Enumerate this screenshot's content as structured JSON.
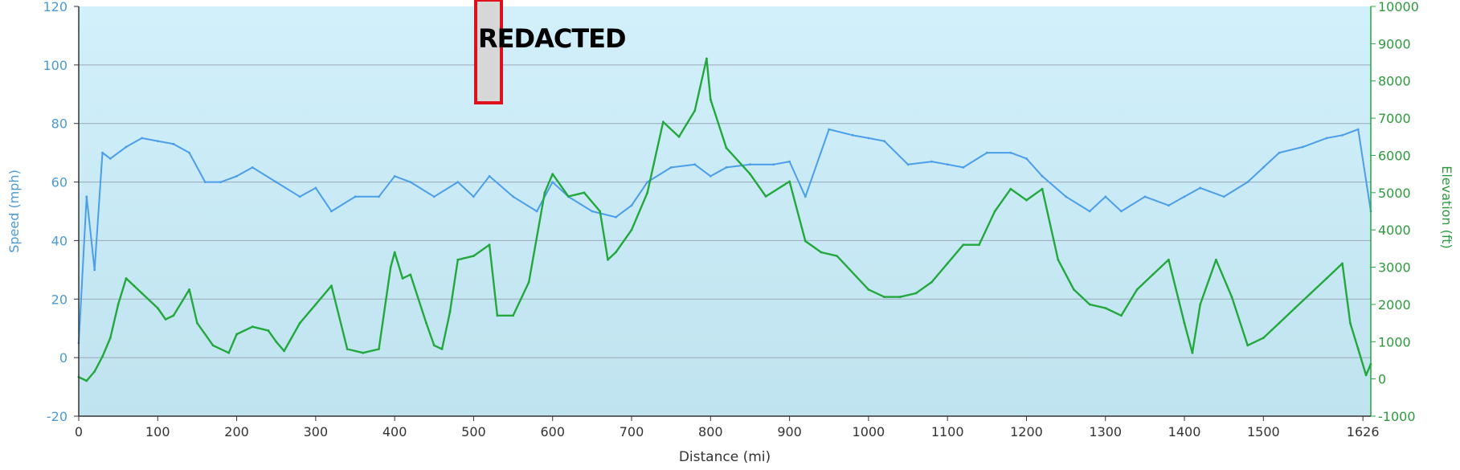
{
  "colors": {
    "speed": "#4a9eea",
    "elevation": "#22a83c",
    "background_top": "#d2f0fb",
    "background_bottom": "#bfe3ef",
    "grid": "#9aa8b8",
    "axis": "#333333",
    "left_tick_text": "#4a9ad6",
    "right_tick_text": "#2e9a3e",
    "redaction_border": "#e0101a",
    "redaction_fill": "#d7d7d7"
  },
  "redaction_label": "REDACTED",
  "chart_data": {
    "type": "line",
    "title": "",
    "xlabel": "Distance  (mi)",
    "ylabel_left": "Speed (mph)",
    "ylabel_right": "Elevation (ft)",
    "xlim": [
      0,
      1636
    ],
    "ylim_left": [
      -20,
      120
    ],
    "ylim_right": [
      -1000,
      10000
    ],
    "x_ticks": [
      0,
      100,
      200,
      300,
      400,
      500,
      600,
      700,
      800,
      900,
      1000,
      1100,
      1200,
      1300,
      1400,
      1500,
      1626
    ],
    "y_ticks_left": [
      -20,
      0,
      20,
      40,
      60,
      80,
      100,
      120
    ],
    "y_ticks_right": [
      -1000,
      0,
      1000,
      2000,
      3000,
      4000,
      5000,
      6000,
      7000,
      8000,
      9000,
      10000
    ],
    "grid": true,
    "series": [
      {
        "name": "Speed (mph)",
        "axis": "left",
        "x": [
          0,
          10,
          20,
          30,
          40,
          60,
          80,
          100,
          120,
          140,
          160,
          180,
          200,
          220,
          250,
          280,
          300,
          320,
          350,
          380,
          400,
          420,
          450,
          480,
          500,
          520,
          550,
          580,
          600,
          620,
          650,
          680,
          700,
          720,
          750,
          780,
          800,
          820,
          850,
          880,
          900,
          920,
          950,
          980,
          1000,
          1020,
          1050,
          1080,
          1100,
          1120,
          1150,
          1180,
          1200,
          1220,
          1250,
          1280,
          1300,
          1320,
          1350,
          1380,
          1400,
          1420,
          1450,
          1480,
          1500,
          1520,
          1550,
          1580,
          1600,
          1620,
          1636
        ],
        "values": [
          5,
          55,
          30,
          70,
          68,
          72,
          75,
          74,
          73,
          70,
          60,
          60,
          62,
          65,
          60,
          55,
          58,
          50,
          55,
          55,
          62,
          60,
          55,
          60,
          55,
          62,
          55,
          50,
          60,
          55,
          50,
          48,
          52,
          60,
          65,
          66,
          62,
          65,
          66,
          66,
          67,
          55,
          78,
          76,
          75,
          74,
          66,
          67,
          66,
          65,
          70,
          70,
          68,
          62,
          55,
          50,
          55,
          50,
          55,
          52,
          55,
          58,
          55,
          60,
          65,
          70,
          72,
          75,
          76,
          78,
          50
        ]
      },
      {
        "name": "Elevation (ft)",
        "axis": "right",
        "x": [
          0,
          10,
          20,
          30,
          40,
          50,
          60,
          70,
          80,
          100,
          110,
          120,
          140,
          150,
          170,
          190,
          200,
          220,
          240,
          250,
          260,
          280,
          300,
          320,
          340,
          360,
          380,
          395,
          400,
          410,
          420,
          440,
          450,
          460,
          470,
          480,
          500,
          520,
          530,
          550,
          570,
          590,
          600,
          620,
          640,
          660,
          670,
          680,
          700,
          720,
          740,
          760,
          780,
          795,
          800,
          820,
          850,
          870,
          900,
          920,
          940,
          960,
          1000,
          1020,
          1040,
          1060,
          1080,
          1100,
          1120,
          1140,
          1160,
          1180,
          1200,
          1220,
          1240,
          1260,
          1280,
          1300,
          1320,
          1340,
          1360,
          1380,
          1400,
          1410,
          1420,
          1440,
          1460,
          1480,
          1500,
          1520,
          1540,
          1560,
          1580,
          1600,
          1610,
          1620,
          1630,
          1636
        ],
        "values": [
          50,
          -50,
          200,
          600,
          1100,
          2000,
          2700,
          2500,
          2300,
          1900,
          1600,
          1700,
          2400,
          1500,
          900,
          700,
          1200,
          1400,
          1300,
          1000,
          750,
          1500,
          2000,
          2500,
          800,
          700,
          800,
          3000,
          3400,
          2700,
          2800,
          1500,
          900,
          800,
          1800,
          3200,
          3300,
          3600,
          1700,
          1700,
          2600,
          5000,
          5500,
          4900,
          5000,
          4500,
          3200,
          3400,
          4000,
          5000,
          6900,
          6500,
          7200,
          8600,
          7500,
          6200,
          5500,
          4900,
          5300,
          3700,
          3400,
          3300,
          2400,
          2200,
          2200,
          2300,
          2600,
          3100,
          3600,
          3600,
          4500,
          5100,
          4800,
          5100,
          3200,
          2400,
          2000,
          1900,
          1700,
          2400,
          2800,
          3200,
          1500,
          700,
          2000,
          3200,
          2200,
          900,
          1100,
          1500,
          1900,
          2300,
          2700,
          3100,
          1500,
          800,
          100,
          400
        ]
      }
    ]
  }
}
